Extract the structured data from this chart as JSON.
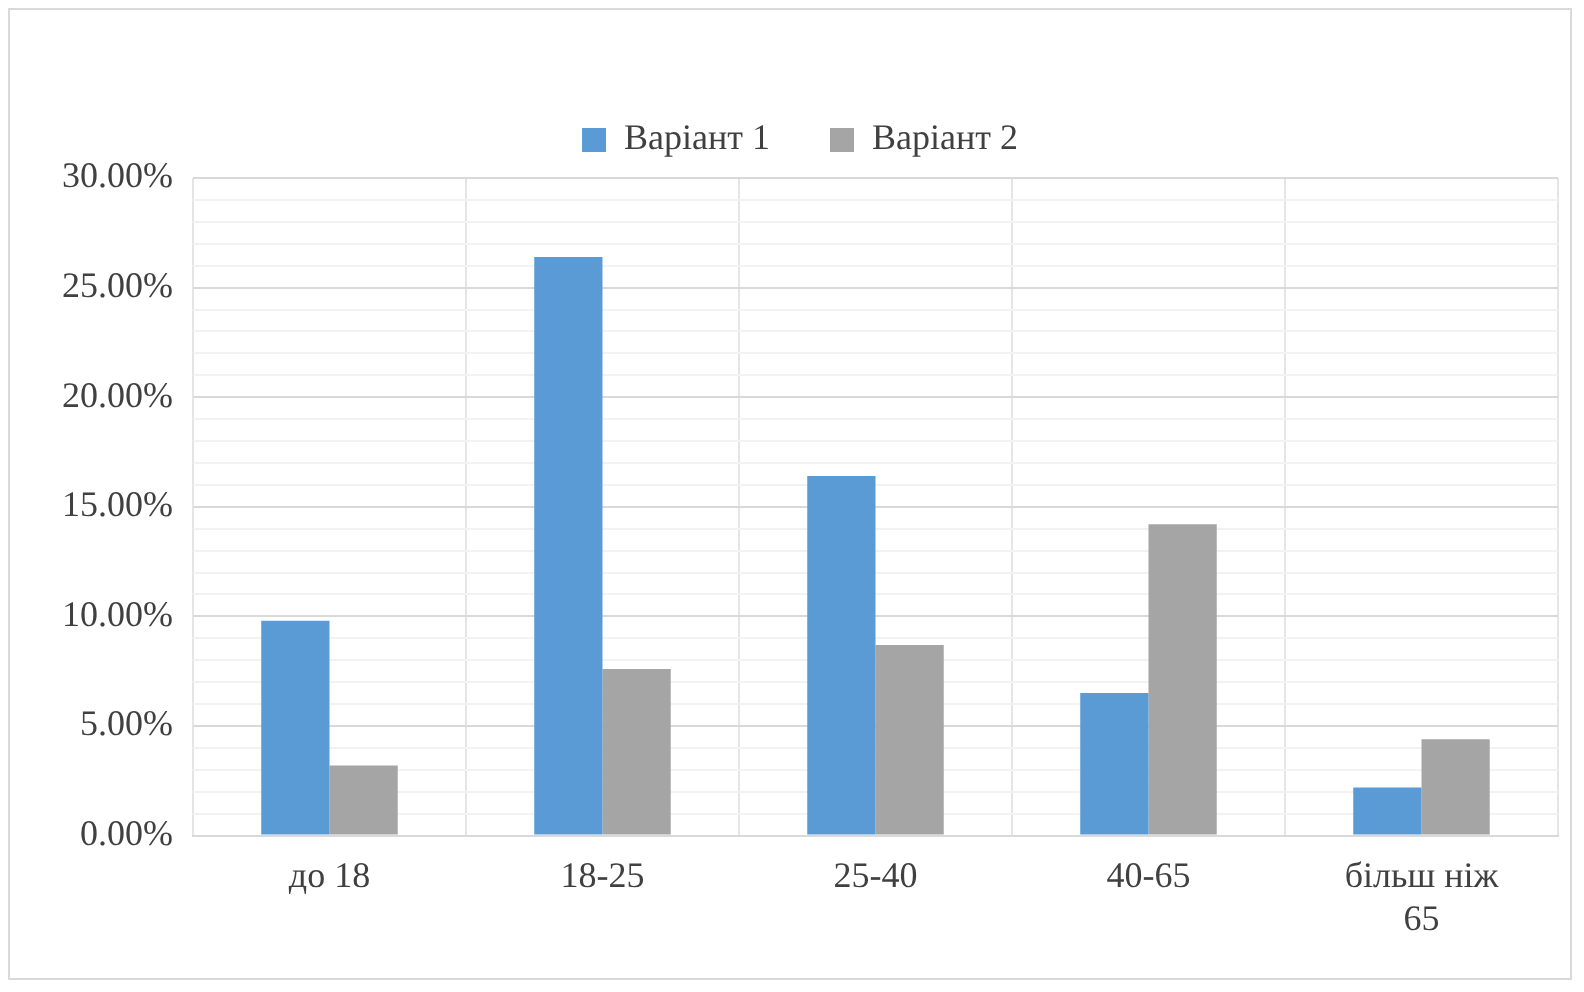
{
  "chart_data": {
    "type": "bar",
    "categories": [
      "до 18",
      "18-25",
      "25-40",
      "40-65",
      "більш ніж 65"
    ],
    "series": [
      {
        "name": "Варіант 1",
        "color": "#5b9bd5",
        "values": [
          9.8,
          26.4,
          16.4,
          6.5,
          2.2
        ]
      },
      {
        "name": "Варіант 2",
        "color": "#a5a5a5",
        "values": [
          3.2,
          7.6,
          8.7,
          14.2,
          4.4
        ]
      }
    ],
    "ylim": [
      0,
      30
    ],
    "yticks": [
      {
        "value": 0,
        "label": "0.00%"
      },
      {
        "value": 1,
        "label": null
      },
      {
        "value": 2,
        "label": null
      },
      {
        "value": 3,
        "label": null
      },
      {
        "value": 4,
        "label": null
      },
      {
        "value": 5,
        "label": "5.00%"
      },
      {
        "value": 6,
        "label": null
      },
      {
        "value": 7,
        "label": null
      },
      {
        "value": 8,
        "label": null
      },
      {
        "value": 9,
        "label": null
      },
      {
        "value": 10,
        "label": "10.00%"
      },
      {
        "value": 11,
        "label": null
      },
      {
        "value": 12,
        "label": null
      },
      {
        "value": 13,
        "label": null
      },
      {
        "value": 14,
        "label": null
      },
      {
        "value": 15,
        "label": "15.00%"
      },
      {
        "value": 16,
        "label": null
      },
      {
        "value": 17,
        "label": null
      },
      {
        "value": 18,
        "label": null
      },
      {
        "value": 19,
        "label": null
      },
      {
        "value": 20,
        "label": "20.00%"
      },
      {
        "value": 21,
        "label": null
      },
      {
        "value": 22,
        "label": null
      },
      {
        "value": 23,
        "label": null
      },
      {
        "value": 24,
        "label": null
      },
      {
        "value": 25,
        "label": "25.00%"
      },
      {
        "value": 26,
        "label": null
      },
      {
        "value": 27,
        "label": null
      },
      {
        "value": 28,
        "label": null
      },
      {
        "value": 29,
        "label": null
      },
      {
        "value": 30,
        "label": "30.00%"
      }
    ],
    "grid": true,
    "legend": "top"
  }
}
